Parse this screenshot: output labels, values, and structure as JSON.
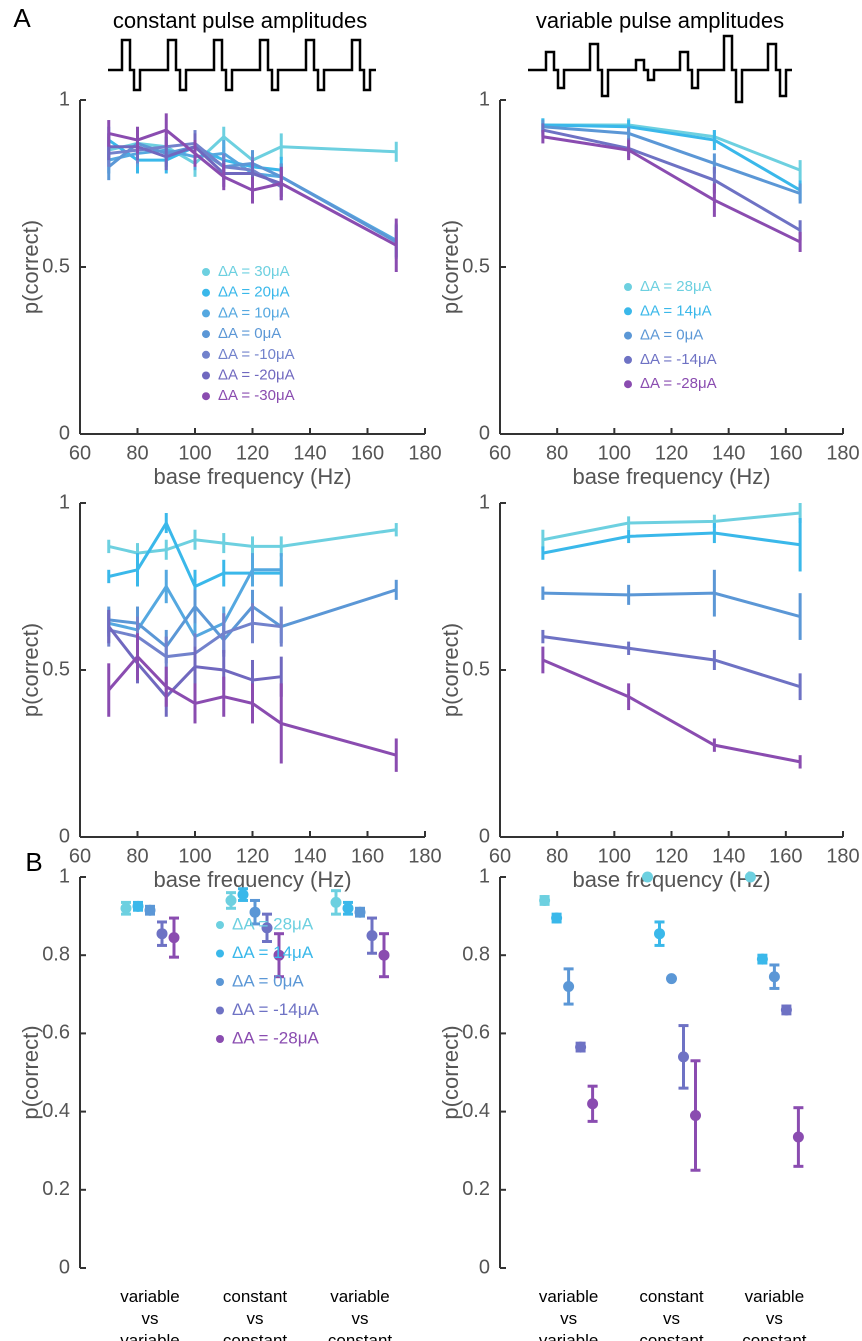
{
  "panel_labels": [
    "A",
    "B"
  ],
  "chart_data": [
    {
      "type": "line",
      "title": "constant pulse amplitudes",
      "x_label": "base frequency (Hz)",
      "y_label": "p(correct)",
      "x": [
        70,
        80,
        90,
        100,
        110,
        120,
        130,
        170
      ],
      "xlim": [
        60,
        180
      ],
      "xticks": [
        60,
        80,
        100,
        120,
        140,
        160,
        180
      ],
      "ylim": [
        0,
        1
      ],
      "yticks": [
        0,
        0.5,
        1
      ],
      "legend": "center",
      "series": [
        {
          "name": "ΔA = 30μA",
          "color": "#6dd0e0",
          "values": [
            0.85,
            0.87,
            0.86,
            0.81,
            0.89,
            0.82,
            0.86,
            0.845
          ],
          "errors": [
            0.04,
            0.03,
            0.03,
            0.04,
            0.03,
            0.02,
            0.04,
            0.03
          ]
        },
        {
          "name": "ΔA = 20μA",
          "color": "#3ab8ea",
          "values": [
            0.88,
            0.82,
            0.82,
            0.86,
            0.82,
            0.8,
            0.79,
            null
          ],
          "errors": [
            0.04,
            0.04,
            0.04,
            0.04,
            0.04,
            0.04,
            0.04,
            null
          ]
        },
        {
          "name": "ΔA = 10μA",
          "color": "#55a8e0",
          "values": [
            0.82,
            0.84,
            0.85,
            0.83,
            0.84,
            0.78,
            0.77,
            0.58
          ],
          "errors": [
            0.04,
            0.04,
            0.04,
            0.04,
            0.04,
            0.04,
            0.04,
            0.05
          ]
        },
        {
          "name": "ΔA = 0μA",
          "color": "#5b97d6",
          "values": [
            0.8,
            0.87,
            0.84,
            0.86,
            0.8,
            0.81,
            0.77,
            0.575
          ],
          "errors": [
            0.04,
            0.04,
            0.04,
            0.04,
            0.04,
            0.04,
            0.04,
            0.05
          ]
        },
        {
          "name": "ΔA = -10μA",
          "color": "#7282cc",
          "values": [
            0.84,
            0.85,
            0.86,
            0.87,
            0.8,
            0.79,
            0.74,
            null
          ],
          "errors": [
            0.04,
            0.04,
            0.04,
            0.04,
            0.04,
            0.04,
            0.04,
            null
          ]
        },
        {
          "name": "ΔA = -20μA",
          "color": "#7068bf",
          "values": [
            0.86,
            0.86,
            0.83,
            0.86,
            0.78,
            0.78,
            0.75,
            null
          ],
          "errors": [
            0.04,
            0.04,
            0.04,
            0.04,
            0.04,
            0.04,
            0.04,
            null
          ]
        },
        {
          "name": "ΔA = -30μA",
          "color": "#8a4cb0",
          "values": [
            0.9,
            0.88,
            0.91,
            0.84,
            0.77,
            0.73,
            0.75,
            0.565
          ],
          "errors": [
            0.04,
            0.04,
            0.05,
            0.04,
            0.04,
            0.04,
            0.05,
            0.08
          ]
        }
      ]
    },
    {
      "type": "line",
      "title": "variable pulse amplitudes",
      "x_label": "base frequency (Hz)",
      "y_label": "p(correct)",
      "x": [
        75,
        105,
        135,
        165
      ],
      "xlim": [
        60,
        180
      ],
      "xticks": [
        60,
        80,
        100,
        120,
        140,
        160,
        180
      ],
      "ylim": [
        0,
        1
      ],
      "yticks": [
        0,
        0.5,
        1
      ],
      "legend": "center",
      "series": [
        {
          "name": "ΔA = 28μA",
          "color": "#6dd0e0",
          "values": [
            0.925,
            0.925,
            0.89,
            0.79
          ],
          "errors": [
            0.02,
            0.02,
            0.02,
            0.03
          ]
        },
        {
          "name": "ΔA = 14μA",
          "color": "#3ab8ea",
          "values": [
            0.925,
            0.92,
            0.88,
            0.73
          ],
          "errors": [
            0.02,
            0.02,
            0.03,
            0.03
          ]
        },
        {
          "name": "ΔA = 0μA",
          "color": "#5b97d6",
          "values": [
            0.92,
            0.9,
            0.81,
            0.72
          ],
          "errors": [
            0.02,
            0.02,
            0.03,
            0.03
          ]
        },
        {
          "name": "ΔA = -14μA",
          "color": "#6e72c4",
          "values": [
            0.91,
            0.855,
            0.76,
            0.61
          ],
          "errors": [
            0.02,
            0.03,
            0.04,
            0.03
          ]
        },
        {
          "name": "ΔA = -28μA",
          "color": "#8a4cb0",
          "values": [
            0.89,
            0.85,
            0.7,
            0.575
          ],
          "errors": [
            0.02,
            0.03,
            0.05,
            0.03
          ]
        }
      ]
    },
    {
      "type": "line",
      "x_label": "base frequency (Hz)",
      "y_label": "p(correct)",
      "x": [
        70,
        80,
        90,
        100,
        110,
        120,
        130,
        170
      ],
      "xlim": [
        60,
        180
      ],
      "xticks": [
        60,
        80,
        100,
        120,
        140,
        160,
        180
      ],
      "ylim": [
        0,
        1
      ],
      "yticks": [
        0,
        0.5,
        1
      ],
      "series": [
        {
          "color": "#6dd0e0",
          "values": [
            0.87,
            0.85,
            0.86,
            0.89,
            0.88,
            0.87,
            0.87,
            0.92
          ],
          "errors": [
            0.02,
            0.03,
            0.03,
            0.03,
            0.03,
            0.03,
            0.03,
            0.02
          ]
        },
        {
          "color": "#3ab8ea",
          "values": [
            0.78,
            0.8,
            0.94,
            0.75,
            0.79,
            0.79,
            0.79,
            null
          ],
          "errors": [
            0.02,
            0.05,
            0.03,
            0.05,
            0.04,
            0.04,
            0.04,
            null
          ]
        },
        {
          "color": "#55a8e0",
          "values": [
            0.64,
            0.62,
            0.75,
            0.6,
            0.64,
            0.8,
            0.8,
            null
          ],
          "errors": [
            0.04,
            0.05,
            0.05,
            0.05,
            0.05,
            0.05,
            0.05,
            null
          ]
        },
        {
          "color": "#5b97d6",
          "values": [
            0.65,
            0.64,
            0.57,
            0.69,
            0.59,
            0.69,
            0.63,
            0.74
          ],
          "errors": [
            0.04,
            0.05,
            0.05,
            0.05,
            0.05,
            0.05,
            0.05,
            0.03
          ]
        },
        {
          "color": "#7282cc",
          "values": [
            0.62,
            0.6,
            0.54,
            0.55,
            0.61,
            0.64,
            0.63,
            null
          ],
          "errors": [
            0.05,
            0.06,
            0.06,
            0.06,
            0.06,
            0.06,
            0.06,
            null
          ]
        },
        {
          "color": "#7068bf",
          "values": [
            0.63,
            0.52,
            0.42,
            0.51,
            0.5,
            0.47,
            0.48,
            null
          ],
          "errors": [
            0.05,
            0.06,
            0.06,
            0.06,
            0.06,
            0.06,
            0.06,
            null
          ]
        },
        {
          "color": "#8a4cb0",
          "values": [
            0.44,
            0.54,
            0.45,
            0.4,
            0.42,
            0.4,
            0.34,
            0.245
          ],
          "errors": [
            0.08,
            0.07,
            0.06,
            0.06,
            0.06,
            0.06,
            0.12,
            0.05
          ]
        }
      ]
    },
    {
      "type": "line",
      "x_label": "base frequency (Hz)",
      "y_label": "p(correct)",
      "x": [
        75,
        105,
        135,
        165
      ],
      "xlim": [
        60,
        180
      ],
      "xticks": [
        60,
        80,
        100,
        120,
        140,
        160,
        180
      ],
      "ylim": [
        0,
        1
      ],
      "yticks": [
        0,
        0.5,
        1
      ],
      "series": [
        {
          "color": "#6dd0e0",
          "values": [
            0.89,
            0.94,
            0.945,
            0.97
          ],
          "errors": [
            0.03,
            0.02,
            0.02,
            0.03
          ]
        },
        {
          "color": "#3ab8ea",
          "values": [
            0.85,
            0.9,
            0.91,
            0.875
          ],
          "errors": [
            0.02,
            0.02,
            0.03,
            0.08
          ]
        },
        {
          "color": "#5b97d6",
          "values": [
            0.73,
            0.725,
            0.73,
            0.66
          ],
          "errors": [
            0.02,
            0.03,
            0.07,
            0.07
          ]
        },
        {
          "color": "#6e72c4",
          "values": [
            0.6,
            0.565,
            0.53,
            0.45
          ],
          "errors": [
            0.02,
            0.02,
            0.03,
            0.04
          ]
        },
        {
          "color": "#8a4cb0",
          "values": [
            0.53,
            0.42,
            0.275,
            0.225
          ],
          "errors": [
            0.04,
            0.04,
            0.02,
            0.02
          ]
        }
      ]
    },
    {
      "type": "dot",
      "y_label": "p(correct)",
      "categories": [
        [
          "variable",
          "vs",
          "variable"
        ],
        [
          "constant",
          "vs",
          "constant"
        ],
        [
          "variable",
          "vs",
          "constant"
        ]
      ],
      "ylim": [
        0,
        1
      ],
      "yticks": [
        0,
        0.2,
        0.4,
        0.6,
        0.8,
        1
      ],
      "legend": "center",
      "series": [
        {
          "name": "ΔA = 28μA",
          "color": "#6dd0e0",
          "values": [
            0.92,
            0.94,
            0.935
          ],
          "errors": [
            0.015,
            0.02,
            0.03
          ]
        },
        {
          "name": "ΔA = 14μA",
          "color": "#3ab8ea",
          "values": [
            0.925,
            0.955,
            0.92
          ],
          "errors": [
            0.01,
            0.015,
            0.015
          ]
        },
        {
          "name": "ΔA = 0μA",
          "color": "#5b97d6",
          "values": [
            0.915,
            0.91,
            0.91
          ],
          "errors": [
            0.01,
            0.03,
            0.01
          ]
        },
        {
          "name": "ΔA = -14μA",
          "color": "#6e72c4",
          "values": [
            0.855,
            0.87,
            0.85
          ],
          "errors": [
            0.03,
            0.035,
            0.045
          ]
        },
        {
          "name": "ΔA = -28μA",
          "color": "#8a4cb0",
          "values": [
            0.845,
            0.8,
            0.8
          ],
          "errors": [
            0.05,
            0.055,
            0.055
          ]
        }
      ]
    },
    {
      "type": "dot",
      "y_label": "p(correct)",
      "categories": [
        [
          "variable",
          "vs",
          "variable"
        ],
        [
          "constant",
          "vs",
          "constant"
        ],
        [
          "variable",
          "vs",
          "constant"
        ]
      ],
      "ylim": [
        0,
        1
      ],
      "yticks": [
        0,
        0.2,
        0.4,
        0.6,
        0.8,
        1
      ],
      "series": [
        {
          "color": "#6dd0e0",
          "values": [
            0.94,
            1,
            1
          ],
          "errors": [
            0.01,
            0,
            0
          ]
        },
        {
          "color": "#3ab8ea",
          "values": [
            0.895,
            0.855,
            0.79
          ],
          "errors": [
            0.01,
            0.03,
            0.01
          ]
        },
        {
          "color": "#5b97d6",
          "values": [
            0.72,
            0.74,
            0.745
          ],
          "errors": [
            0.045,
            0,
            0.03
          ]
        },
        {
          "color": "#6e72c4",
          "values": [
            0.565,
            0.54,
            0.66
          ],
          "errors": [
            0.01,
            0.08,
            0.01
          ]
        },
        {
          "color": "#8a4cb0",
          "values": [
            0.42,
            0.39,
            0.335
          ],
          "errors": [
            0.045,
            0.14,
            0.075
          ]
        }
      ]
    }
  ]
}
